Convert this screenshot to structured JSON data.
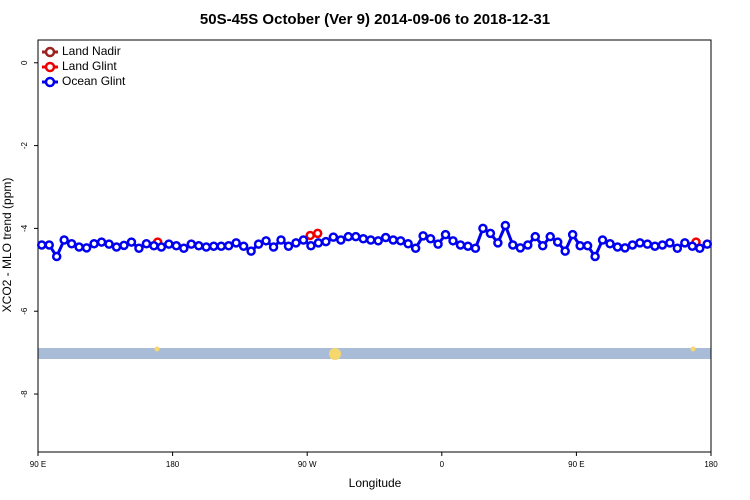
{
  "chart_data": {
    "type": "line",
    "title": "50S-45S October (Ver 9)   2014-09-06 to 2018-12-31",
    "x_label": "Longitude",
    "y_label": "XCO2 - MLO trend (ppm)",
    "xlim": [
      90,
      540
    ],
    "xticks": [
      {
        "value": 90,
        "label": "90 E"
      },
      180,
      {
        "value": 270,
        "label": "90 W"
      },
      {
        "value": 360,
        "label": "0"
      },
      {
        "value": 450,
        "label": "90 E"
      },
      {
        "value": 540,
        "label": "180"
      }
    ],
    "ylim": [
      -9.4,
      0.55
    ],
    "yticks": [
      0,
      -2,
      -4,
      -6,
      -8
    ],
    "legend": "top-left",
    "series": [
      {
        "name": "Land Nadir",
        "color": "#9b2222",
        "x": [],
        "values": []
      },
      {
        "name": "Land Glint",
        "color": "#ee0000",
        "x": [
          170,
          272,
          277,
          530
        ],
        "values": [
          -4.33,
          -4.17,
          -4.12,
          -4.33
        ]
      },
      {
        "name": "Ocean Glint",
        "color": "#0000ee",
        "x": [
          92.5,
          97.5,
          102.5,
          107.5,
          112.5,
          117.5,
          122.5,
          127.5,
          132.5,
          137.5,
          142.5,
          147.5,
          152.5,
          157.5,
          162.5,
          167.5,
          172.5,
          177.5,
          182.5,
          187.5,
          192.5,
          197.5,
          202.5,
          207.5,
          212.5,
          217.5,
          222.5,
          227.5,
          232.5,
          237.5,
          242.5,
          247.5,
          252.5,
          257.5,
          262.5,
          267.5,
          272.5,
          277.5,
          282.5,
          287.5,
          292.5,
          297.5,
          302.5,
          307.5,
          312.5,
          317.5,
          322.5,
          327.5,
          332.5,
          337.5,
          342.5,
          347.5,
          352.5,
          357.5,
          362.5,
          367.5,
          372.5,
          377.5,
          382.5,
          387.5,
          392.5,
          397.5,
          402.5,
          407.5,
          412.5,
          417.5,
          422.5,
          427.5,
          432.5,
          437.5,
          442.5,
          447.5,
          452.5,
          457.5,
          462.5,
          467.5,
          472.5,
          477.5,
          482.5,
          487.5,
          492.5,
          497.5,
          502.5,
          507.5,
          512.5,
          517.5,
          522.5,
          527.5,
          532.5,
          537.5
        ],
        "values": [
          -4.4,
          -4.4,
          -4.68,
          -4.28,
          -4.37,
          -4.45,
          -4.47,
          -4.37,
          -4.33,
          -4.38,
          -4.45,
          -4.41,
          -4.33,
          -4.48,
          -4.37,
          -4.42,
          -4.45,
          -4.38,
          -4.42,
          -4.48,
          -4.38,
          -4.42,
          -4.45,
          -4.43,
          -4.43,
          -4.42,
          -4.35,
          -4.43,
          -4.55,
          -4.38,
          -4.3,
          -4.45,
          -4.28,
          -4.43,
          -4.35,
          -4.28,
          -4.42,
          -4.35,
          -4.32,
          -4.21,
          -4.28,
          -4.2,
          -4.2,
          -4.25,
          -4.28,
          -4.3,
          -4.22,
          -4.28,
          -4.3,
          -4.37,
          -4.48,
          -4.18,
          -4.25,
          -4.38,
          -4.15,
          -4.3,
          -4.4,
          -4.43,
          -4.48,
          -4.0,
          -4.12,
          -4.35,
          -3.93,
          -4.4,
          -4.47,
          -4.4,
          -4.2,
          -4.42,
          -4.2,
          -4.33,
          -4.55,
          -4.15,
          -4.42,
          -4.42,
          -4.68,
          -4.28,
          -4.37,
          -4.45,
          -4.47,
          -4.4,
          -4.35,
          -4.38,
          -4.43,
          -4.4,
          -4.35,
          -4.48,
          -4.35,
          -4.43,
          -4.48,
          -4.38
        ]
      }
    ]
  }
}
